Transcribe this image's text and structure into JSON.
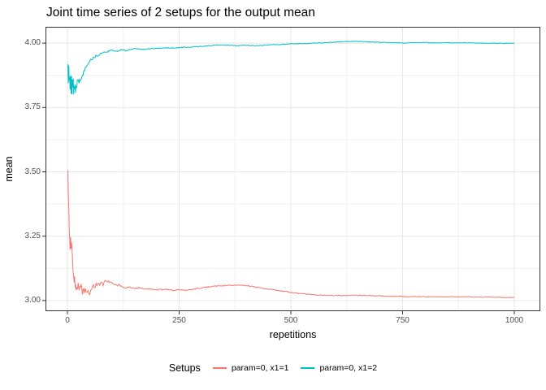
{
  "figure": {
    "title": "Joint time series of 2 setups for the output mean",
    "x_axis_label": "repetitions",
    "y_axis_label": "mean",
    "legend_title": "Setups"
  },
  "colors": {
    "series1": "#F8766D",
    "series2": "#00BFC4",
    "grid_major": "#E6E6E6",
    "grid_minor": "#F0F0F0",
    "panel_border": "#333333",
    "tick_mark": "#333333",
    "tick_label": "#4D4D4D",
    "background": "#FFFFFF"
  },
  "chart_data": {
    "type": "line",
    "title": "Joint time series of 2 setups for the output mean",
    "xlabel": "repetitions",
    "ylabel": "mean",
    "grid": true,
    "legend_position": "bottom",
    "legend_title": "Setups",
    "x_ticks": [
      {
        "value": 0,
        "label": "0"
      },
      {
        "value": 250,
        "label": "250"
      },
      {
        "value": 500,
        "label": "500"
      },
      {
        "value": 750,
        "label": "750"
      },
      {
        "value": 1000,
        "label": "1000"
      }
    ],
    "y_ticks": [
      {
        "value": 4.0,
        "label": "4.00"
      },
      {
        "value": 3.75,
        "label": "3.75"
      },
      {
        "value": 3.5,
        "label": "3.50"
      },
      {
        "value": 3.25,
        "label": "3.25"
      },
      {
        "value": 3.0,
        "label": "3.00"
      }
    ],
    "xlim": [
      -49.1,
      1058.2
    ],
    "ylim": [
      2.9587,
      4.0634
    ],
    "x_data_range": [
      1,
      1000
    ],
    "series": [
      {
        "name": "param=0, x1=1",
        "color": "#F8766D",
        "seed": 20231,
        "points": [
          [
            1,
            3.503
          ],
          [
            2,
            3.42
          ],
          [
            3,
            3.345
          ],
          [
            4,
            3.28
          ],
          [
            5,
            3.235
          ],
          [
            6,
            3.21
          ],
          [
            7,
            3.235
          ],
          [
            8,
            3.19
          ],
          [
            9,
            3.225
          ],
          [
            10,
            3.2
          ],
          [
            11,
            3.17
          ],
          [
            12,
            3.14
          ],
          [
            13,
            3.105
          ],
          [
            14,
            3.09
          ],
          [
            15,
            3.075
          ],
          [
            16,
            3.085
          ],
          [
            17,
            3.06
          ],
          [
            18,
            3.07
          ],
          [
            19,
            3.05
          ],
          [
            20,
            3.06
          ],
          [
            22,
            3.045
          ],
          [
            24,
            3.06
          ],
          [
            26,
            3.035
          ],
          [
            28,
            3.05
          ],
          [
            30,
            3.063
          ],
          [
            32,
            3.045
          ],
          [
            34,
            3.03
          ],
          [
            36,
            3.048
          ],
          [
            38,
            3.03
          ],
          [
            40,
            3.042
          ],
          [
            43,
            3.028
          ],
          [
            46,
            3.04
          ],
          [
            49,
            3.022
          ],
          [
            52,
            3.035
          ],
          [
            55,
            3.05
          ],
          [
            58,
            3.06
          ],
          [
            61,
            3.048
          ],
          [
            64,
            3.065
          ],
          [
            67,
            3.055
          ],
          [
            70,
            3.07
          ],
          [
            73,
            3.06
          ],
          [
            76,
            3.072
          ],
          [
            80,
            3.063
          ],
          [
            84,
            3.075
          ],
          [
            88,
            3.07
          ],
          [
            92,
            3.078
          ],
          [
            96,
            3.068
          ],
          [
            100,
            3.072
          ],
          [
            105,
            3.062
          ],
          [
            110,
            3.058
          ],
          [
            115,
            3.062
          ],
          [
            120,
            3.055
          ],
          [
            130,
            3.05
          ],
          [
            140,
            3.052
          ],
          [
            150,
            3.048
          ],
          [
            160,
            3.05
          ],
          [
            175,
            3.046
          ],
          [
            190,
            3.044
          ],
          [
            205,
            3.042
          ],
          [
            220,
            3.044
          ],
          [
            235,
            3.04
          ],
          [
            250,
            3.042
          ],
          [
            265,
            3.04
          ],
          [
            280,
            3.044
          ],
          [
            295,
            3.048
          ],
          [
            310,
            3.052
          ],
          [
            325,
            3.055
          ],
          [
            340,
            3.057
          ],
          [
            355,
            3.059
          ],
          [
            370,
            3.06
          ],
          [
            385,
            3.06
          ],
          [
            400,
            3.058
          ],
          [
            415,
            3.054
          ],
          [
            430,
            3.05
          ],
          [
            445,
            3.046
          ],
          [
            460,
            3.042
          ],
          [
            475,
            3.038
          ],
          [
            490,
            3.035
          ],
          [
            505,
            3.03
          ],
          [
            520,
            3.027
          ],
          [
            535,
            3.025
          ],
          [
            550,
            3.023
          ],
          [
            565,
            3.021
          ],
          [
            580,
            3.02
          ],
          [
            600,
            3.02
          ],
          [
            620,
            3.019
          ],
          [
            640,
            3.02
          ],
          [
            660,
            3.021
          ],
          [
            680,
            3.019
          ],
          [
            700,
            3.018
          ],
          [
            720,
            3.017
          ],
          [
            740,
            3.016
          ],
          [
            760,
            3.015
          ],
          [
            780,
            3.016
          ],
          [
            800,
            3.015
          ],
          [
            820,
            3.015
          ],
          [
            840,
            3.014
          ],
          [
            860,
            3.015
          ],
          [
            880,
            3.014
          ],
          [
            900,
            3.015
          ],
          [
            920,
            3.013
          ],
          [
            940,
            3.014
          ],
          [
            960,
            3.013
          ],
          [
            980,
            3.012
          ],
          [
            1000,
            3.012
          ]
        ],
        "noise_amplitude": [
          [
            1,
            0.004
          ],
          [
            5,
            0.016
          ],
          [
            14,
            0.011
          ],
          [
            30,
            0.009
          ],
          [
            60,
            0.006
          ],
          [
            100,
            0.005
          ],
          [
            150,
            0.0025
          ],
          [
            300,
            0.002
          ],
          [
            1000,
            0.0013
          ]
        ]
      },
      {
        "name": "param=0, x1=2",
        "color": "#00BFC4",
        "seed": 91121,
        "points": [
          [
            1,
            3.905
          ],
          [
            2,
            3.86
          ],
          [
            3,
            3.895
          ],
          [
            4,
            3.84
          ],
          [
            5,
            3.885
          ],
          [
            6,
            3.82
          ],
          [
            7,
            3.87
          ],
          [
            8,
            3.81
          ],
          [
            9,
            3.855
          ],
          [
            10,
            3.815
          ],
          [
            11,
            3.86
          ],
          [
            12,
            3.82
          ],
          [
            13,
            3.85
          ],
          [
            14,
            3.805
          ],
          [
            15,
            3.84
          ],
          [
            16,
            3.82
          ],
          [
            17,
            3.845
          ],
          [
            18,
            3.815
          ],
          [
            19,
            3.835
          ],
          [
            20,
            3.83
          ],
          [
            22,
            3.845
          ],
          [
            24,
            3.855
          ],
          [
            26,
            3.85
          ],
          [
            28,
            3.858
          ],
          [
            30,
            3.862
          ],
          [
            34,
            3.872
          ],
          [
            38,
            3.895
          ],
          [
            42,
            3.912
          ],
          [
            46,
            3.92
          ],
          [
            50,
            3.93
          ],
          [
            55,
            3.938
          ],
          [
            60,
            3.946
          ],
          [
            65,
            3.95
          ],
          [
            70,
            3.955
          ],
          [
            75,
            3.958
          ],
          [
            80,
            3.962
          ],
          [
            85,
            3.964
          ],
          [
            90,
            3.967
          ],
          [
            95,
            3.97
          ],
          [
            100,
            3.972
          ],
          [
            110,
            3.968
          ],
          [
            120,
            3.974
          ],
          [
            130,
            3.971
          ],
          [
            140,
            3.976
          ],
          [
            150,
            3.978
          ],
          [
            165,
            3.975
          ],
          [
            180,
            3.978
          ],
          [
            200,
            3.98
          ],
          [
            220,
            3.982
          ],
          [
            240,
            3.98
          ],
          [
            260,
            3.984
          ],
          [
            280,
            3.985
          ],
          [
            300,
            3.988
          ],
          [
            320,
            3.99
          ],
          [
            340,
            3.993
          ],
          [
            360,
            3.992
          ],
          [
            380,
            3.99
          ],
          [
            400,
            3.992
          ],
          [
            420,
            3.99
          ],
          [
            440,
            3.992
          ],
          [
            460,
            3.994
          ],
          [
            480,
            3.995
          ],
          [
            500,
            3.997
          ],
          [
            525,
            3.998
          ],
          [
            550,
            4.0
          ],
          [
            575,
            4.001
          ],
          [
            600,
            4.004
          ],
          [
            625,
            4.006
          ],
          [
            650,
            4.007
          ],
          [
            675,
            4.005
          ],
          [
            700,
            4.003
          ],
          [
            725,
            4.002
          ],
          [
            750,
            4.001
          ],
          [
            775,
            4.002
          ],
          [
            800,
            4.002
          ],
          [
            825,
            4.001
          ],
          [
            850,
            4.002
          ],
          [
            875,
            4.001
          ],
          [
            900,
            4.001
          ],
          [
            925,
            4.0
          ],
          [
            950,
            4.0
          ],
          [
            975,
            3.999
          ],
          [
            1000,
            4.0
          ]
        ],
        "noise_amplitude": [
          [
            1,
            0.02
          ],
          [
            20,
            0.016
          ],
          [
            28,
            0.005
          ],
          [
            60,
            0.004
          ],
          [
            100,
            0.003
          ],
          [
            150,
            0.002
          ],
          [
            300,
            0.0015
          ],
          [
            1000,
            0.001
          ]
        ]
      }
    ]
  }
}
